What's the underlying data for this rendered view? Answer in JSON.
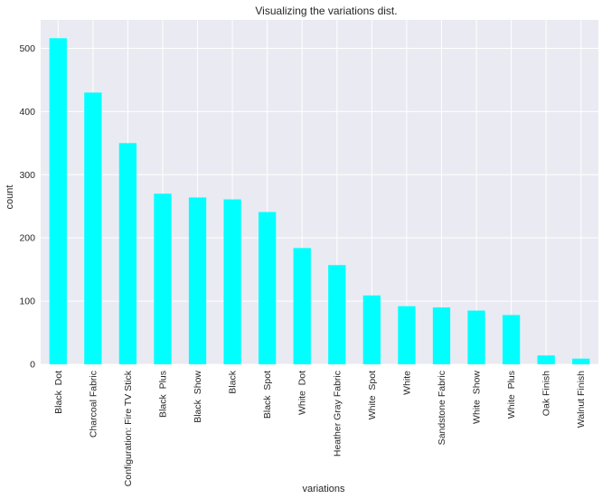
{
  "chart_data": {
    "type": "bar",
    "title": "Visualizing the variations dist.",
    "xlabel": "variations",
    "ylabel": "count",
    "ylim": [
      0,
      545
    ],
    "yticks": [
      0,
      100,
      200,
      300,
      400,
      500
    ],
    "grid": true,
    "bar_color": "#00ffff",
    "background_color": "#eaeaf2",
    "grid_color": "#ffffff",
    "categories": [
      "Black  Dot",
      "Charcoal Fabric",
      "Configuration: Fire TV Stick",
      "Black  Plus",
      "Black  Show",
      "Black",
      "Black  Spot",
      "White  Dot",
      "Heather Gray Fabric",
      "White  Spot",
      "White",
      "Sandstone Fabric",
      "White  Show",
      "White  Plus",
      "Oak Finish",
      "Walnut Finish"
    ],
    "values": [
      516,
      430,
      350,
      270,
      264,
      261,
      241,
      184,
      157,
      109,
      92,
      90,
      85,
      78,
      14,
      9
    ]
  }
}
